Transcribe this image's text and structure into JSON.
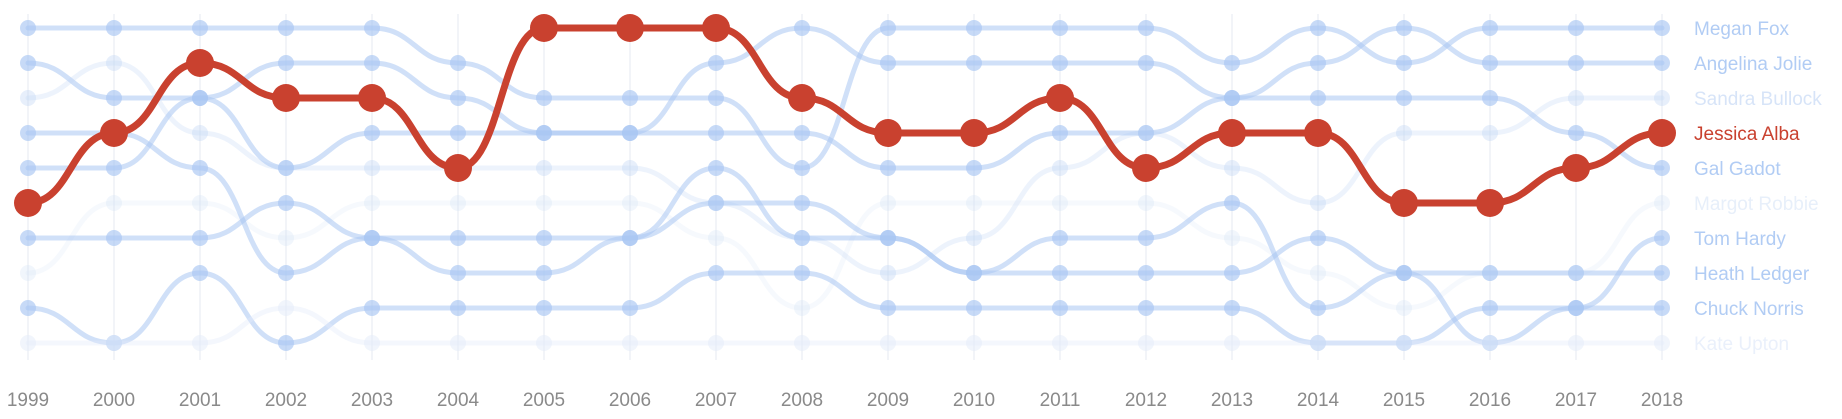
{
  "chart_data": {
    "type": "line",
    "subtype": "bump chart (popularity rank by year)",
    "x": [
      1999,
      2000,
      2001,
      2002,
      2003,
      2004,
      2005,
      2006,
      2007,
      2008,
      2009,
      2010,
      2011,
      2012,
      2013,
      2014,
      2015,
      2016,
      2017,
      2018
    ],
    "y_axis": {
      "meaning": "rank",
      "inverted": true,
      "range": [
        1,
        10
      ],
      "tick_labels_shown": false
    },
    "grid": "vertical lines at each year",
    "legend": "right, labels aligned to 2018 rank",
    "highlighted_series": "Jessica Alba",
    "colors": {
      "highlight": "#c9412f",
      "others": "#bcd3f7",
      "axis_text": "#8a8a8a",
      "grid": "#eef1f6"
    },
    "series": [
      {
        "name": "Megan Fox",
        "ranks": [
          1,
          1,
          1,
          1,
          1,
          2,
          3,
          3,
          3,
          5,
          1,
          1,
          1,
          1,
          2,
          1,
          2,
          1,
          1,
          1
        ],
        "color": "#a9c6f3",
        "opacity": 0.55
      },
      {
        "name": "Angelina Jolie",
        "ranks": [
          2,
          3,
          3,
          2,
          2,
          3,
          4,
          4,
          2,
          1,
          2,
          2,
          2,
          2,
          3,
          2,
          1,
          2,
          2,
          2
        ],
        "color": "#a9c6f3",
        "opacity": 0.55
      },
      {
        "name": "Sandra Bullock",
        "ranks": [
          3,
          2,
          4,
          5,
          5,
          5,
          5,
          5,
          6,
          7,
          8,
          7,
          5,
          4,
          5,
          6,
          4,
          4,
          3,
          3
        ],
        "color": "#c2d6f5",
        "opacity": 0.3
      },
      {
        "name": "Jessica Alba",
        "ranks": [
          6,
          4,
          2,
          3,
          3,
          5,
          1,
          1,
          1,
          3,
          4,
          4,
          3,
          5,
          4,
          4,
          6,
          6,
          5,
          4
        ],
        "color": "#c9412f",
        "opacity": 1
      },
      {
        "name": "Gal Gadot",
        "ranks": [
          5,
          5,
          3,
          5,
          4,
          4,
          4,
          4,
          4,
          4,
          5,
          5,
          4,
          4,
          3,
          3,
          3,
          3,
          4,
          5
        ],
        "color": "#a9c6f3",
        "opacity": 0.55
      },
      {
        "name": "Margot Robbie",
        "ranks": [
          8,
          6,
          6,
          7,
          6,
          6,
          6,
          6,
          7,
          9,
          6,
          6,
          6,
          6,
          7,
          8,
          9,
          8,
          8,
          6
        ],
        "color": "#d5e2f7",
        "opacity": 0.22
      },
      {
        "name": "Tom Hardy",
        "ranks": [
          7,
          7,
          7,
          6,
          7,
          7,
          7,
          7,
          6,
          6,
          7,
          8,
          7,
          7,
          6,
          9,
          8,
          10,
          9,
          7
        ],
        "color": "#a9c6f3",
        "opacity": 0.55
      },
      {
        "name": "Heath Ledger",
        "ranks": [
          4,
          4,
          5,
          8,
          7,
          8,
          8,
          7,
          5,
          7,
          7,
          8,
          8,
          8,
          8,
          7,
          8,
          8,
          8,
          8
        ],
        "color": "#a9c6f3",
        "opacity": 0.55
      },
      {
        "name": "Chuck Norris",
        "ranks": [
          9,
          10,
          8,
          10,
          9,
          9,
          9,
          9,
          8,
          8,
          9,
          9,
          9,
          9,
          9,
          10,
          10,
          9,
          9,
          9
        ],
        "color": "#a9c6f3",
        "opacity": 0.55
      },
      {
        "name": "Kate Upton",
        "ranks": [
          10,
          10,
          10,
          9,
          10,
          10,
          10,
          10,
          10,
          10,
          10,
          10,
          10,
          10,
          10,
          10,
          10,
          10,
          10,
          10
        ],
        "color": "#e3ebf9",
        "opacity": 0.4
      }
    ]
  }
}
